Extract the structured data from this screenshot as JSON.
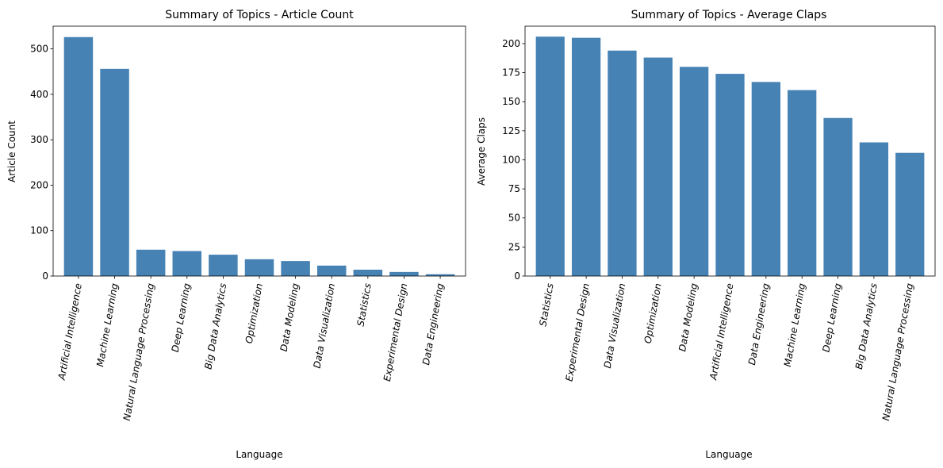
{
  "chart_data": [
    {
      "type": "bar",
      "title": "Summary of Topics - Article Count",
      "xlabel": "Language",
      "ylabel": "Article Count",
      "ylim": [
        0,
        550
      ],
      "yticks": [
        0,
        100,
        200,
        300,
        400,
        500
      ],
      "color": "#4682b4",
      "categories": [
        "Artificial Intelligence",
        "Machine Learning",
        "Natural Language Processing",
        "Deep Learning",
        "Big Data Analytics",
        "Optimization",
        "Data Modeling",
        "Data Visualization",
        "Statistics",
        "Experimental Design",
        "Data Engineering"
      ],
      "values": [
        526,
        456,
        58,
        55,
        47,
        37,
        33,
        23,
        14,
        9,
        4
      ]
    },
    {
      "type": "bar",
      "title": "Summary of Topics - Average Claps",
      "xlabel": "Language",
      "ylabel": "Average Claps",
      "ylim": [
        0,
        215
      ],
      "yticks": [
        0,
        25,
        50,
        75,
        100,
        125,
        150,
        175,
        200
      ],
      "color": "#4682b4",
      "categories": [
        "Statistics",
        "Experimental Design",
        "Data Visualization",
        "Optimization",
        "Data Modeling",
        "Artificial Intelligence",
        "Data Engineering",
        "Machine Learning",
        "Deep Learning",
        "Big Data Analytics",
        "Natural Language Processing"
      ],
      "values": [
        206,
        205,
        194,
        188,
        180,
        174,
        167,
        160,
        136,
        115,
        106
      ]
    }
  ]
}
